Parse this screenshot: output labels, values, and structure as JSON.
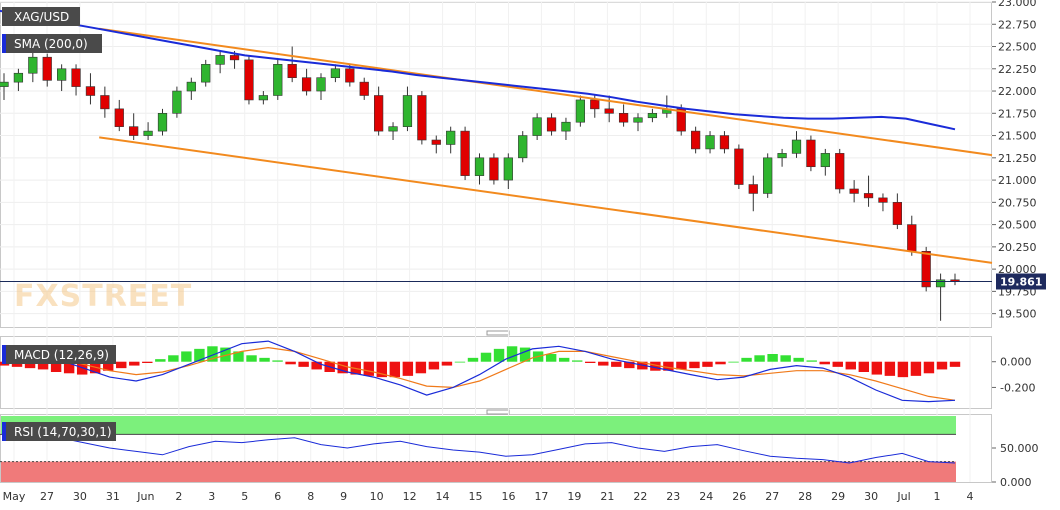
{
  "chart_data": {
    "type": "candlestick",
    "symbol": "XAG/USD",
    "watermark": "FXSTREET",
    "price_label": "19.861",
    "colors": {
      "up": "#2fb52f",
      "down": "#e00000",
      "sma": "#1a2bd8",
      "channel": "#f28a1e",
      "macd_line": "#1a2bd8",
      "signal_line": "#f07a1a",
      "hist_up": "#33e033",
      "hist_down": "#ee1111",
      "rsi_line": "#1a2bd8",
      "rsi_overbought": "#7cf07c",
      "rsi_oversold": "#f07a7a",
      "label_bg": "#4a4a4a"
    },
    "price_panel": {
      "ylim": [
        19.35,
        23.0
      ],
      "ticks": [
        "19.500",
        "19.750",
        "20.000",
        "20.250",
        "20.500",
        "20.750",
        "21.000",
        "21.250",
        "21.500",
        "21.750",
        "22.000",
        "22.250",
        "22.500",
        "22.750",
        "23.000"
      ],
      "indicator_label": "SMA (200,0)",
      "last_price": 19.861,
      "x_count": 225,
      "candles": [
        [
          22.05,
          22.2,
          21.9,
          22.1
        ],
        [
          22.1,
          22.25,
          22.0,
          22.2
        ],
        [
          22.2,
          22.45,
          22.1,
          22.38
        ],
        [
          22.38,
          22.42,
          22.05,
          22.12
        ],
        [
          22.12,
          22.3,
          22.0,
          22.25
        ],
        [
          22.25,
          22.3,
          21.95,
          22.05
        ],
        [
          22.05,
          22.2,
          21.85,
          21.95
        ],
        [
          21.95,
          22.05,
          21.7,
          21.8
        ],
        [
          21.8,
          21.9,
          21.55,
          21.6
        ],
        [
          21.6,
          21.75,
          21.45,
          21.5
        ],
        [
          21.5,
          21.65,
          21.45,
          21.55
        ],
        [
          21.55,
          21.8,
          21.5,
          21.75
        ],
        [
          21.75,
          22.05,
          21.7,
          22.0
        ],
        [
          22.0,
          22.15,
          21.9,
          22.1
        ],
        [
          22.1,
          22.35,
          22.05,
          22.3
        ],
        [
          22.3,
          22.45,
          22.2,
          22.4
        ],
        [
          22.4,
          22.45,
          22.25,
          22.35
        ],
        [
          22.35,
          22.4,
          21.85,
          21.9
        ],
        [
          21.9,
          22.0,
          21.85,
          21.95
        ],
        [
          21.95,
          22.35,
          21.9,
          22.3
        ],
        [
          22.3,
          22.5,
          22.1,
          22.15
        ],
        [
          22.15,
          22.25,
          21.95,
          22.0
        ],
        [
          22.0,
          22.2,
          21.9,
          22.15
        ],
        [
          22.15,
          22.3,
          22.1,
          22.25
        ],
        [
          22.25,
          22.3,
          22.05,
          22.1
        ],
        [
          22.1,
          22.15,
          21.9,
          21.95
        ],
        [
          21.95,
          22.05,
          21.5,
          21.55
        ],
        [
          21.55,
          21.65,
          21.45,
          21.6
        ],
        [
          21.6,
          22.05,
          21.55,
          21.95
        ],
        [
          21.95,
          22.0,
          21.4,
          21.45
        ],
        [
          21.45,
          21.5,
          21.3,
          21.4
        ],
        [
          21.4,
          21.6,
          21.3,
          21.55
        ],
        [
          21.55,
          21.6,
          21.0,
          21.05
        ],
        [
          21.05,
          21.3,
          20.95,
          21.25
        ],
        [
          21.25,
          21.3,
          20.95,
          21.0
        ],
        [
          21.0,
          21.3,
          20.9,
          21.25
        ],
        [
          21.25,
          21.55,
          21.2,
          21.5
        ],
        [
          21.5,
          21.75,
          21.45,
          21.7
        ],
        [
          21.7,
          21.75,
          21.5,
          21.55
        ],
        [
          21.55,
          21.7,
          21.45,
          21.65
        ],
        [
          21.65,
          21.95,
          21.6,
          21.9
        ],
        [
          21.9,
          21.95,
          21.7,
          21.8
        ],
        [
          21.8,
          21.95,
          21.65,
          21.75
        ],
        [
          21.75,
          21.85,
          21.6,
          21.65
        ],
        [
          21.65,
          21.75,
          21.55,
          21.7
        ],
        [
          21.7,
          21.8,
          21.65,
          21.75
        ],
        [
          21.75,
          21.95,
          21.7,
          21.8
        ],
        [
          21.8,
          21.85,
          21.5,
          21.55
        ],
        [
          21.55,
          21.6,
          21.3,
          21.35
        ],
        [
          21.35,
          21.55,
          21.3,
          21.5
        ],
        [
          21.5,
          21.55,
          21.3,
          21.35
        ],
        [
          21.35,
          21.4,
          20.9,
          20.95
        ],
        [
          20.95,
          21.05,
          20.65,
          20.85
        ],
        [
          20.85,
          21.3,
          20.8,
          21.25
        ],
        [
          21.25,
          21.35,
          21.15,
          21.3
        ],
        [
          21.3,
          21.55,
          21.25,
          21.45
        ],
        [
          21.45,
          21.5,
          21.1,
          21.15
        ],
        [
          21.15,
          21.35,
          21.05,
          21.3
        ],
        [
          21.3,
          21.35,
          20.85,
          20.9
        ],
        [
          20.9,
          21.0,
          20.75,
          20.85
        ],
        [
          20.85,
          21.05,
          20.7,
          20.8
        ],
        [
          20.8,
          20.85,
          20.65,
          20.75
        ],
        [
          20.75,
          20.85,
          20.45,
          20.5
        ],
        [
          20.5,
          20.6,
          20.15,
          20.2
        ],
        [
          20.2,
          20.25,
          19.75,
          19.8
        ],
        [
          19.8,
          19.95,
          19.42,
          19.88
        ],
        [
          19.88,
          19.95,
          19.82,
          19.86
        ]
      ],
      "sma": [
        22.9,
        22.85,
        22.8,
        22.75,
        22.7,
        22.65,
        22.6,
        22.55,
        22.5,
        22.45,
        22.4,
        22.37,
        22.34,
        22.31,
        22.28,
        22.25,
        22.22,
        22.18,
        22.15,
        22.12,
        22.09,
        22.06,
        22.03,
        22.0,
        21.97,
        21.93,
        21.88,
        21.84,
        21.8,
        21.77,
        21.74,
        21.72,
        21.7,
        21.69,
        21.69,
        21.7,
        21.71,
        21.69,
        21.63,
        21.57
      ],
      "channel_upper": [
        [
          0.1,
          22.7
        ],
        [
          1.0,
          21.28
        ]
      ],
      "channel_lower": [
        [
          0.1,
          21.48
        ],
        [
          1.0,
          20.07
        ]
      ]
    },
    "macd_panel": {
      "indicator_label": "MACD (12,26,9)",
      "ylim": [
        -0.36,
        0.2
      ],
      "ticks": [
        "0.000",
        "-0.200"
      ],
      "histogram": [
        -0.03,
        -0.04,
        -0.05,
        -0.06,
        -0.08,
        -0.09,
        -0.1,
        -0.09,
        -0.07,
        -0.05,
        -0.03,
        -0.01,
        0.02,
        0.05,
        0.08,
        0.1,
        0.12,
        0.11,
        0.08,
        0.05,
        0.03,
        0.01,
        -0.02,
        -0.04,
        -0.06,
        -0.08,
        -0.09,
        -0.1,
        -0.11,
        -0.12,
        -0.12,
        -0.11,
        -0.09,
        -0.06,
        -0.03,
        0.0,
        0.03,
        0.07,
        0.1,
        0.12,
        0.11,
        0.08,
        0.06,
        0.03,
        0.01,
        -0.01,
        -0.03,
        -0.04,
        -0.05,
        -0.06,
        -0.07,
        -0.07,
        -0.06,
        -0.05,
        -0.04,
        -0.02,
        0.0,
        0.03,
        0.05,
        0.06,
        0.05,
        0.03,
        0.01,
        -0.02,
        -0.04,
        -0.06,
        -0.08,
        -0.1,
        -0.11,
        -0.12,
        -0.11,
        -0.09,
        -0.06,
        -0.04
      ],
      "macd_line": [
        0.1,
        0.07,
        0.02,
        -0.05,
        -0.12,
        -0.15,
        -0.1,
        -0.02,
        0.06,
        0.14,
        0.16,
        0.08,
        -0.02,
        -0.08,
        -0.12,
        -0.18,
        -0.26,
        -0.2,
        -0.1,
        0.02,
        0.1,
        0.12,
        0.08,
        0.02,
        -0.02,
        -0.06,
        -0.1,
        -0.14,
        -0.12,
        -0.06,
        -0.03,
        -0.05,
        -0.12,
        -0.22,
        -0.3,
        -0.31,
        -0.3
      ],
      "signal_line": [
        0.08,
        0.06,
        0.03,
        -0.02,
        -0.07,
        -0.1,
        -0.08,
        -0.03,
        0.03,
        0.08,
        0.11,
        0.08,
        0.02,
        -0.04,
        -0.08,
        -0.13,
        -0.19,
        -0.2,
        -0.15,
        -0.06,
        0.03,
        0.08,
        0.08,
        0.04,
        0.0,
        -0.04,
        -0.07,
        -0.1,
        -0.11,
        -0.09,
        -0.07,
        -0.07,
        -0.1,
        -0.15,
        -0.21,
        -0.27,
        -0.3
      ]
    },
    "rsi_panel": {
      "indicator_label": "RSI (14,70,30,1)",
      "ylim": [
        0,
        100
      ],
      "ticks": [
        "50.000",
        "0.000"
      ],
      "overbought": 70,
      "oversold": 30,
      "rsi": [
        72,
        70,
        66,
        58,
        50,
        45,
        40,
        52,
        60,
        58,
        62,
        65,
        55,
        50,
        56,
        60,
        52,
        47,
        44,
        38,
        40,
        48,
        56,
        58,
        50,
        45,
        52,
        55,
        46,
        38,
        35,
        33,
        28,
        36,
        42,
        30,
        28
      ]
    },
    "x_labels": [
      "May",
      "27",
      "30",
      "31",
      "Jun",
      "2",
      "3",
      "5",
      "6",
      "8",
      "9",
      "10",
      "12",
      "14",
      "15",
      "16",
      "17",
      "19",
      "21",
      "22",
      "23",
      "24",
      "26",
      "27",
      "28",
      "29",
      "30",
      "Jul",
      "1",
      "4"
    ]
  }
}
